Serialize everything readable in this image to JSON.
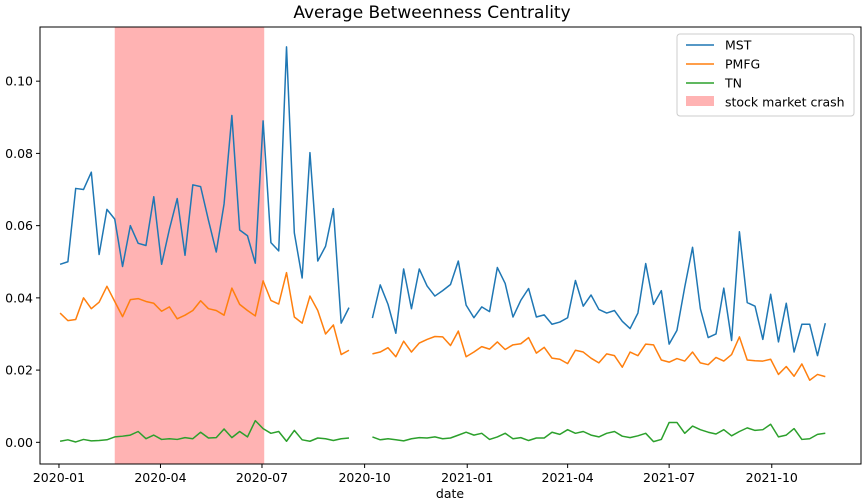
{
  "chart_data": {
    "type": "line",
    "title": "Average Betweenness Centrality",
    "xlabel": "date",
    "ylabel": "",
    "x_ticks": [
      "2020-01",
      "2020-04",
      "2020-07",
      "2020-10",
      "2021-01",
      "2021-04",
      "2021-07",
      "2021-10"
    ],
    "y_ticks": [
      "0.00",
      "0.02",
      "0.04",
      "0.06",
      "0.08",
      "0.10"
    ],
    "ylim": [
      -0.006,
      0.115
    ],
    "xlim": [
      "2019-12-15",
      "2021-12-20"
    ],
    "legend_placement": "top-right",
    "shaded_region": {
      "label": "stock market crash",
      "start": "2020-02-20",
      "end": "2020-07-03",
      "color": "#ffb3b3"
    },
    "x": [
      "2020-01-02",
      "2020-01-09",
      "2020-01-16",
      "2020-01-23",
      "2020-01-30",
      "2020-02-06",
      "2020-02-13",
      "2020-02-20",
      "2020-02-27",
      "2020-03-05",
      "2020-03-12",
      "2020-03-19",
      "2020-03-26",
      "2020-04-02",
      "2020-04-09",
      "2020-04-16",
      "2020-04-23",
      "2020-04-30",
      "2020-05-07",
      "2020-05-14",
      "2020-05-21",
      "2020-05-28",
      "2020-06-04",
      "2020-06-11",
      "2020-06-18",
      "2020-06-25",
      "2020-07-02",
      "2020-07-09",
      "2020-07-16",
      "2020-07-23",
      "2020-07-30",
      "2020-08-06",
      "2020-08-13",
      "2020-08-20",
      "2020-08-27",
      "2020-09-03",
      "2020-09-10",
      "2020-09-17",
      "2020-09-24",
      null,
      "2020-10-08",
      "2020-10-15",
      "2020-10-22",
      "2020-10-29",
      "2020-11-05",
      "2020-11-12",
      "2020-11-19",
      "2020-11-26",
      "2020-12-03",
      "2020-12-10",
      "2020-12-17",
      "2020-12-24",
      "2020-12-31",
      "2021-01-07",
      "2021-01-14",
      "2021-01-21",
      "2021-01-28",
      "2021-02-04",
      "2021-02-11",
      "2021-02-18",
      "2021-02-25",
      "2021-03-04",
      "2021-03-11",
      "2021-03-18",
      "2021-03-25",
      "2021-04-01",
      "2021-04-08",
      "2021-04-15",
      "2021-04-22",
      "2021-04-29",
      "2021-05-06",
      "2021-05-13",
      "2021-05-20",
      "2021-05-27",
      "2021-06-03",
      "2021-06-10",
      "2021-06-17",
      "2021-06-24",
      "2021-07-01",
      "2021-07-08",
      "2021-07-15",
      "2021-07-22",
      "2021-07-29",
      "2021-08-05",
      "2021-08-12",
      "2021-08-19",
      "2021-08-26",
      "2021-09-02",
      "2021-09-09",
      "2021-09-16",
      "2021-09-23",
      "2021-09-30",
      "2021-10-07",
      "2021-10-14",
      "2021-10-21",
      "2021-10-28",
      "2021-11-04",
      "2021-11-11",
      "2021-11-18",
      "2021-11-25"
    ],
    "series": [
      {
        "name": "MST",
        "color": "#1f77b4",
        "values": [
          0.0493,
          0.05,
          0.0703,
          0.07,
          0.0748,
          0.052,
          0.0645,
          0.0618,
          0.0487,
          0.06,
          0.0551,
          0.0545,
          0.068,
          0.0493,
          0.059,
          0.0675,
          0.0518,
          0.0713,
          0.0708,
          0.0615,
          0.0527,
          0.066,
          0.0905,
          0.0588,
          0.0572,
          0.0496,
          0.089,
          0.0553,
          0.053,
          0.1095,
          0.058,
          0.0455,
          0.0802,
          0.0502,
          0.0543,
          0.0647,
          0.033,
          0.0373,
          null,
          null,
          0.0344,
          0.0436,
          0.0382,
          0.0302,
          0.048,
          0.037,
          0.048,
          0.0433,
          0.0405,
          0.042,
          0.0437,
          0.0502,
          0.038,
          0.0345,
          0.0375,
          0.0362,
          0.0484,
          0.044,
          0.0347,
          0.0393,
          0.0426,
          0.0347,
          0.0353,
          0.0327,
          0.0333,
          0.0345,
          0.0448,
          0.0377,
          0.0408,
          0.0368,
          0.0358,
          0.0365,
          0.0335,
          0.0315,
          0.0358,
          0.0495,
          0.0382,
          0.042,
          0.0272,
          0.031,
          0.043,
          0.054,
          0.037,
          0.029,
          0.03,
          0.0427,
          0.0282,
          0.0583,
          0.0387,
          0.0377,
          0.0285,
          0.041,
          0.0278,
          0.0385,
          0.025,
          0.0327,
          0.0327,
          0.024,
          0.033,
          null
        ]
      },
      {
        "name": "PMFG",
        "color": "#ff7f0e",
        "values": [
          0.0358,
          0.0337,
          0.034,
          0.04,
          0.037,
          0.0388,
          0.0432,
          0.039,
          0.0348,
          0.0395,
          0.0398,
          0.039,
          0.0385,
          0.0363,
          0.0375,
          0.0342,
          0.0352,
          0.0365,
          0.0392,
          0.037,
          0.0365,
          0.0352,
          0.0427,
          0.0382,
          0.0365,
          0.035,
          0.0447,
          0.0393,
          0.0383,
          0.047,
          0.0347,
          0.033,
          0.0405,
          0.0365,
          0.03,
          0.0325,
          0.0243,
          0.0255,
          null,
          null,
          0.0245,
          0.025,
          0.0262,
          0.0237,
          0.028,
          0.025,
          0.0275,
          0.0285,
          0.0293,
          0.0292,
          0.0268,
          0.0308,
          0.0237,
          0.025,
          0.0265,
          0.0258,
          0.0278,
          0.0257,
          0.027,
          0.0273,
          0.029,
          0.0247,
          0.0263,
          0.0233,
          0.023,
          0.0218,
          0.0255,
          0.025,
          0.0233,
          0.022,
          0.0245,
          0.024,
          0.0208,
          0.025,
          0.024,
          0.0272,
          0.027,
          0.0228,
          0.0222,
          0.0232,
          0.0225,
          0.025,
          0.022,
          0.0215,
          0.0235,
          0.0225,
          0.0243,
          0.0292,
          0.0228,
          0.0226,
          0.0225,
          0.023,
          0.0188,
          0.021,
          0.0183,
          0.0217,
          0.0172,
          0.0188,
          0.0182,
          null
        ]
      },
      {
        "name": "TN",
        "color": "#2ca02c",
        "values": [
          0.0003,
          0.0007,
          0.0001,
          0.0008,
          0.0004,
          0.0005,
          0.0007,
          0.0015,
          0.0017,
          0.002,
          0.003,
          0.001,
          0.002,
          0.0008,
          0.001,
          0.0008,
          0.0013,
          0.001,
          0.0028,
          0.0012,
          0.0013,
          0.0037,
          0.0013,
          0.003,
          0.0015,
          0.006,
          0.0038,
          0.0025,
          0.003,
          0.0003,
          0.0033,
          0.0007,
          0.0003,
          0.0012,
          0.001,
          0.0005,
          0.001,
          0.0012,
          null,
          null,
          0.0015,
          0.0007,
          0.001,
          0.0007,
          0.0004,
          0.001,
          0.0013,
          0.0012,
          0.0015,
          0.001,
          0.0012,
          0.002,
          0.0028,
          0.002,
          0.0025,
          0.0008,
          0.0015,
          0.0025,
          0.001,
          0.0013,
          0.0005,
          0.0012,
          0.0012,
          0.0028,
          0.0022,
          0.0035,
          0.0025,
          0.003,
          0.002,
          0.0015,
          0.0025,
          0.003,
          0.0017,
          0.0013,
          0.0018,
          0.0025,
          0.0002,
          0.0008,
          0.0055,
          0.0055,
          0.0025,
          0.0045,
          0.0035,
          0.0028,
          0.0023,
          0.0035,
          0.0018,
          0.003,
          0.004,
          0.0033,
          0.0035,
          0.005,
          0.0015,
          0.002,
          0.0038,
          0.0008,
          0.001,
          0.0022,
          0.0025,
          null
        ]
      }
    ]
  }
}
